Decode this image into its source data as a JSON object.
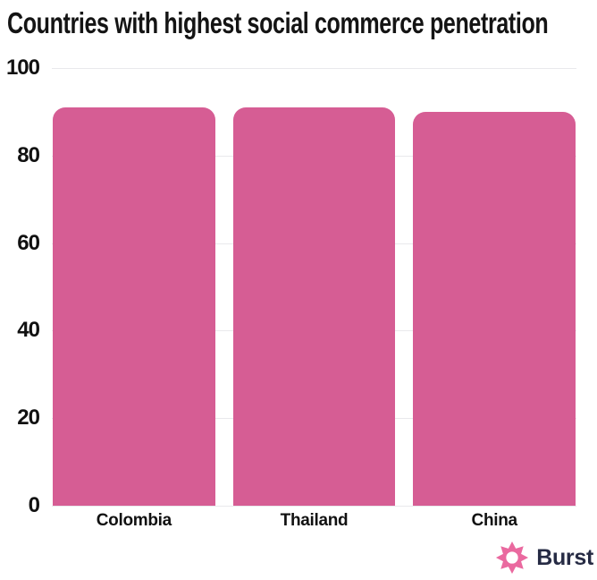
{
  "title": "Countries with highest social commerce penetration",
  "chart_data": {
    "type": "bar",
    "title": "Countries with highest social commerce penetration",
    "categories": [
      "Colombia",
      "Thailand",
      "China"
    ],
    "values": [
      91,
      91,
      90
    ],
    "xlabel": "",
    "ylabel": "",
    "ylim": [
      0,
      100
    ],
    "yticks": [
      0,
      20,
      40,
      60,
      80,
      100
    ],
    "grid": "horizontal gridlines on, behind bars",
    "legend": "none",
    "bar_color": "#d65d94"
  },
  "colors": {
    "background": "#ffffff",
    "bar": "#d65d94",
    "gridline": "#e9e9ec",
    "title_text": "#141414",
    "axis_text": "#111111",
    "brand_text": "#262b44",
    "brand_icon_pink": "#ea699f"
  },
  "branding": {
    "name": "Burst",
    "icon": "burst-star-icon"
  }
}
